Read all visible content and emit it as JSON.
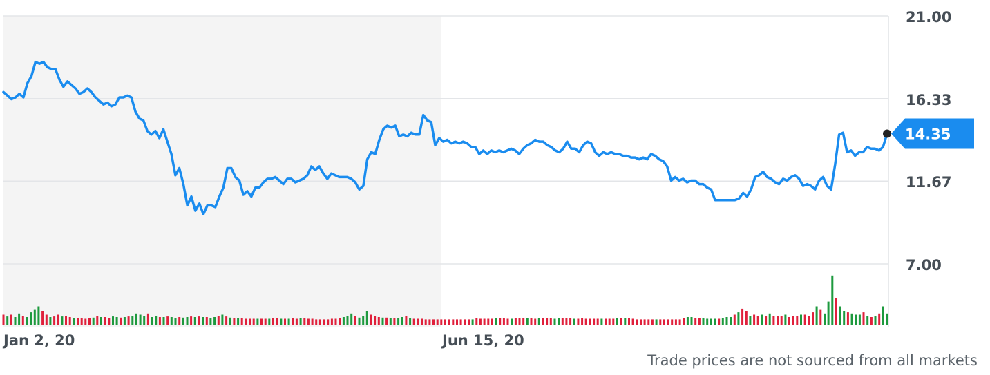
{
  "chart_data": {
    "type": "line",
    "y_ticks": [
      "21.00",
      "16.33",
      "11.67",
      "7.00"
    ],
    "ylim": [
      7.0,
      21.0
    ],
    "x_tick_labels": [
      "Jan 2, 20",
      "Jun 15, 20"
    ],
    "current_price_label": "14.35",
    "footnote": "Trade prices are not sourced from all markets",
    "colors": {
      "line": "#1a8cef",
      "grid": "#e3e5e8",
      "shade": "#f4f4f4",
      "vol_up": "#1d9a3e",
      "vol_down": "#e0203b",
      "marker": "#222222"
    },
    "series": [
      {
        "values": [
          16.7,
          16.5,
          16.3,
          16.4,
          16.6,
          16.4,
          17.2,
          17.6,
          18.4,
          18.3,
          18.4,
          18.1,
          18.0,
          18.0,
          17.4,
          17.0,
          17.3,
          17.1,
          16.9,
          16.6,
          16.7,
          16.9,
          16.7,
          16.4,
          16.2,
          16.0,
          16.1,
          15.9,
          16.0,
          16.4,
          16.4,
          16.5,
          16.4,
          15.6,
          15.2,
          15.1,
          14.5,
          14.3,
          14.5,
          14.1,
          14.6,
          13.9,
          13.2,
          12.0,
          12.4,
          11.5,
          10.3,
          10.8,
          10.0,
          10.4,
          9.8,
          10.3,
          10.3,
          10.2,
          10.8,
          11.3,
          12.4,
          12.4,
          11.9,
          11.7,
          10.9,
          11.1,
          10.8,
          11.3,
          11.3,
          11.6,
          11.8,
          11.8,
          11.9,
          11.7,
          11.5,
          11.8,
          11.8,
          11.6,
          11.7,
          11.8,
          12.0,
          12.5,
          12.3,
          12.5,
          12.1,
          11.8,
          12.1,
          12.0,
          11.9,
          11.9,
          11.9,
          11.8,
          11.6,
          11.2,
          11.4,
          12.9,
          13.3,
          13.2,
          14.0,
          14.6,
          14.8,
          14.7,
          14.8,
          14.2,
          14.3,
          14.2,
          14.4,
          14.3,
          14.3,
          15.4,
          15.1,
          15.0,
          13.7,
          14.1,
          13.9,
          14.0,
          13.8,
          13.9,
          13.8,
          13.9,
          13.8,
          13.6,
          13.6,
          13.2,
          13.4,
          13.2,
          13.4,
          13.3,
          13.4,
          13.3,
          13.4,
          13.5,
          13.4,
          13.2,
          13.5,
          13.7,
          13.8,
          14.0,
          13.9,
          13.9,
          13.7,
          13.6,
          13.4,
          13.3,
          13.5,
          13.9,
          13.5,
          13.5,
          13.3,
          13.7,
          13.9,
          13.8,
          13.3,
          13.1,
          13.3,
          13.2,
          13.3,
          13.2,
          13.2,
          13.1,
          13.1,
          13.0,
          13.0,
          12.9,
          13.0,
          12.9,
          13.2,
          13.1,
          12.9,
          12.8,
          12.5,
          11.7,
          11.9,
          11.7,
          11.8,
          11.6,
          11.7,
          11.7,
          11.5,
          11.5,
          11.3,
          11.2,
          10.6,
          10.6,
          10.6,
          10.6,
          10.6,
          10.6,
          10.7,
          11.0,
          10.8,
          11.2,
          11.9,
          12.0,
          12.2,
          11.9,
          11.8,
          11.6,
          11.5,
          11.8,
          11.7,
          11.9,
          12.0,
          11.8,
          11.4,
          11.5,
          11.4,
          11.2,
          11.7,
          11.9,
          11.4,
          11.2,
          12.6,
          14.3,
          14.4,
          13.3,
          13.4,
          13.1,
          13.3,
          13.3,
          13.6,
          13.5,
          13.5,
          13.4,
          13.6,
          14.35
        ]
      }
    ],
    "volume": [
      {
        "v": 18,
        "c": "down"
      },
      {
        "v": 15,
        "c": "up"
      },
      {
        "v": 18,
        "c": "down"
      },
      {
        "v": 14,
        "c": "up"
      },
      {
        "v": 20,
        "c": "up"
      },
      {
        "v": 16,
        "c": "down"
      },
      {
        "v": 14,
        "c": "up"
      },
      {
        "v": 22,
        "c": "up"
      },
      {
        "v": 26,
        "c": "up"
      },
      {
        "v": 32,
        "c": "up"
      },
      {
        "v": 24,
        "c": "down"
      },
      {
        "v": 18,
        "c": "down"
      },
      {
        "v": 14,
        "c": "up"
      },
      {
        "v": 15,
        "c": "down"
      },
      {
        "v": 18,
        "c": "down"
      },
      {
        "v": 15,
        "c": "up"
      },
      {
        "v": 16,
        "c": "down"
      },
      {
        "v": 14,
        "c": "down"
      },
      {
        "v": 12,
        "c": "up"
      },
      {
        "v": 12,
        "c": "down"
      },
      {
        "v": 12,
        "c": "down"
      },
      {
        "v": 11,
        "c": "down"
      },
      {
        "v": 12,
        "c": "down"
      },
      {
        "v": 13,
        "c": "up"
      },
      {
        "v": 16,
        "c": "down"
      },
      {
        "v": 14,
        "c": "up"
      },
      {
        "v": 14,
        "c": "down"
      },
      {
        "v": 12,
        "c": "down"
      },
      {
        "v": 15,
        "c": "up"
      },
      {
        "v": 14,
        "c": "up"
      },
      {
        "v": 13,
        "c": "down"
      },
      {
        "v": 14,
        "c": "up"
      },
      {
        "v": 15,
        "c": "down"
      },
      {
        "v": 16,
        "c": "up"
      },
      {
        "v": 20,
        "c": "up"
      },
      {
        "v": 18,
        "c": "up"
      },
      {
        "v": 16,
        "c": "up"
      },
      {
        "v": 20,
        "c": "down"
      },
      {
        "v": 14,
        "c": "up"
      },
      {
        "v": 16,
        "c": "up"
      },
      {
        "v": 14,
        "c": "down"
      },
      {
        "v": 14,
        "c": "up"
      },
      {
        "v": 15,
        "c": "down"
      },
      {
        "v": 14,
        "c": "up"
      },
      {
        "v": 12,
        "c": "up"
      },
      {
        "v": 14,
        "c": "down"
      },
      {
        "v": 13,
        "c": "up"
      },
      {
        "v": 14,
        "c": "up"
      },
      {
        "v": 15,
        "c": "down"
      },
      {
        "v": 14,
        "c": "up"
      },
      {
        "v": 15,
        "c": "down"
      },
      {
        "v": 14,
        "c": "up"
      },
      {
        "v": 14,
        "c": "down"
      },
      {
        "v": 12,
        "c": "up"
      },
      {
        "v": 14,
        "c": "up"
      },
      {
        "v": 16,
        "c": "down"
      },
      {
        "v": 18,
        "c": "up"
      },
      {
        "v": 15,
        "c": "down"
      },
      {
        "v": 13,
        "c": "up"
      },
      {
        "v": 12,
        "c": "down"
      },
      {
        "v": 12,
        "c": "up"
      },
      {
        "v": 12,
        "c": "down"
      },
      {
        "v": 11,
        "c": "down"
      },
      {
        "v": 11,
        "c": "down"
      },
      {
        "v": 11,
        "c": "down"
      },
      {
        "v": 11,
        "c": "up"
      },
      {
        "v": 11,
        "c": "down"
      },
      {
        "v": 11,
        "c": "down"
      },
      {
        "v": 11,
        "c": "up"
      },
      {
        "v": 12,
        "c": "down"
      },
      {
        "v": 12,
        "c": "down"
      },
      {
        "v": 11,
        "c": "up"
      },
      {
        "v": 11,
        "c": "down"
      },
      {
        "v": 11,
        "c": "up"
      },
      {
        "v": 12,
        "c": "down"
      },
      {
        "v": 11,
        "c": "down"
      },
      {
        "v": 12,
        "c": "up"
      },
      {
        "v": 12,
        "c": "down"
      },
      {
        "v": 11,
        "c": "down"
      },
      {
        "v": 11,
        "c": "down"
      },
      {
        "v": 10,
        "c": "down"
      },
      {
        "v": 10,
        "c": "down"
      },
      {
        "v": 10,
        "c": "down"
      },
      {
        "v": 10,
        "c": "down"
      },
      {
        "v": 11,
        "c": "down"
      },
      {
        "v": 11,
        "c": "down"
      },
      {
        "v": 12,
        "c": "down"
      },
      {
        "v": 14,
        "c": "up"
      },
      {
        "v": 16,
        "c": "up"
      },
      {
        "v": 20,
        "c": "up"
      },
      {
        "v": 16,
        "c": "down"
      },
      {
        "v": 13,
        "c": "up"
      },
      {
        "v": 16,
        "c": "up"
      },
      {
        "v": 24,
        "c": "up"
      },
      {
        "v": 18,
        "c": "down"
      },
      {
        "v": 16,
        "c": "down"
      },
      {
        "v": 14,
        "c": "down"
      },
      {
        "v": 13,
        "c": "up"
      },
      {
        "v": 13,
        "c": "down"
      },
      {
        "v": 12,
        "c": "up"
      },
      {
        "v": 12,
        "c": "down"
      },
      {
        "v": 12,
        "c": "up"
      },
      {
        "v": 14,
        "c": "up"
      },
      {
        "v": 16,
        "c": "down"
      },
      {
        "v": 12,
        "c": "up"
      },
      {
        "v": 11,
        "c": "down"
      },
      {
        "v": 11,
        "c": "down"
      },
      {
        "v": 11,
        "c": "down"
      },
      {
        "v": 10,
        "c": "down"
      },
      {
        "v": 10,
        "c": "down"
      },
      {
        "v": 10,
        "c": "down"
      },
      {
        "v": 10,
        "c": "down"
      },
      {
        "v": 10,
        "c": "down"
      },
      {
        "v": 10,
        "c": "down"
      },
      {
        "v": 10,
        "c": "down"
      },
      {
        "v": 10,
        "c": "down"
      },
      {
        "v": 10,
        "c": "down"
      },
      {
        "v": 10,
        "c": "down"
      },
      {
        "v": 10,
        "c": "down"
      },
      {
        "v": 10,
        "c": "down"
      },
      {
        "v": 10,
        "c": "up"
      },
      {
        "v": 12,
        "c": "down"
      },
      {
        "v": 11,
        "c": "down"
      },
      {
        "v": 11,
        "c": "down"
      },
      {
        "v": 11,
        "c": "down"
      },
      {
        "v": 11,
        "c": "down"
      },
      {
        "v": 12,
        "c": "up"
      },
      {
        "v": 12,
        "c": "down"
      },
      {
        "v": 12,
        "c": "down"
      },
      {
        "v": 11,
        "c": "down"
      },
      {
        "v": 11,
        "c": "up"
      },
      {
        "v": 12,
        "c": "down"
      },
      {
        "v": 12,
        "c": "down"
      },
      {
        "v": 12,
        "c": "down"
      },
      {
        "v": 12,
        "c": "up"
      },
      {
        "v": 12,
        "c": "down"
      },
      {
        "v": 11,
        "c": "down"
      },
      {
        "v": 12,
        "c": "up"
      },
      {
        "v": 12,
        "c": "down"
      },
      {
        "v": 12,
        "c": "down"
      },
      {
        "v": 12,
        "c": "down"
      },
      {
        "v": 11,
        "c": "up"
      },
      {
        "v": 12,
        "c": "up"
      },
      {
        "v": 12,
        "c": "down"
      },
      {
        "v": 12,
        "c": "down"
      },
      {
        "v": 12,
        "c": "down"
      },
      {
        "v": 11,
        "c": "up"
      },
      {
        "v": 11,
        "c": "down"
      },
      {
        "v": 12,
        "c": "down"
      },
      {
        "v": 11,
        "c": "down"
      },
      {
        "v": 11,
        "c": "down"
      },
      {
        "v": 11,
        "c": "down"
      },
      {
        "v": 11,
        "c": "down"
      },
      {
        "v": 11,
        "c": "up"
      },
      {
        "v": 11,
        "c": "down"
      },
      {
        "v": 11,
        "c": "down"
      },
      {
        "v": 11,
        "c": "down"
      },
      {
        "v": 12,
        "c": "up"
      },
      {
        "v": 12,
        "c": "down"
      },
      {
        "v": 12,
        "c": "up"
      },
      {
        "v": 12,
        "c": "down"
      },
      {
        "v": 11,
        "c": "down"
      },
      {
        "v": 10,
        "c": "down"
      },
      {
        "v": 10,
        "c": "down"
      },
      {
        "v": 10,
        "c": "down"
      },
      {
        "v": 10,
        "c": "down"
      },
      {
        "v": 10,
        "c": "down"
      },
      {
        "v": 10,
        "c": "up"
      },
      {
        "v": 10,
        "c": "down"
      },
      {
        "v": 10,
        "c": "down"
      },
      {
        "v": 10,
        "c": "down"
      },
      {
        "v": 10,
        "c": "down"
      },
      {
        "v": 10,
        "c": "down"
      },
      {
        "v": 10,
        "c": "down"
      },
      {
        "v": 12,
        "c": "down"
      },
      {
        "v": 14,
        "c": "up"
      },
      {
        "v": 14,
        "c": "up"
      },
      {
        "v": 12,
        "c": "down"
      },
      {
        "v": 12,
        "c": "down"
      },
      {
        "v": 12,
        "c": "up"
      },
      {
        "v": 11,
        "c": "up"
      },
      {
        "v": 11,
        "c": "up"
      },
      {
        "v": 11,
        "c": "up"
      },
      {
        "v": 11,
        "c": "down"
      },
      {
        "v": 12,
        "c": "up"
      },
      {
        "v": 14,
        "c": "up"
      },
      {
        "v": 14,
        "c": "up"
      },
      {
        "v": 18,
        "c": "down"
      },
      {
        "v": 22,
        "c": "up"
      },
      {
        "v": 28,
        "c": "down"
      },
      {
        "v": 24,
        "c": "down"
      },
      {
        "v": 16,
        "c": "up"
      },
      {
        "v": 18,
        "c": "down"
      },
      {
        "v": 16,
        "c": "down"
      },
      {
        "v": 18,
        "c": "up"
      },
      {
        "v": 16,
        "c": "down"
      },
      {
        "v": 20,
        "c": "up"
      },
      {
        "v": 16,
        "c": "down"
      },
      {
        "v": 16,
        "c": "down"
      },
      {
        "v": 16,
        "c": "down"
      },
      {
        "v": 18,
        "c": "up"
      },
      {
        "v": 14,
        "c": "down"
      },
      {
        "v": 16,
        "c": "down"
      },
      {
        "v": 16,
        "c": "down"
      },
      {
        "v": 18,
        "c": "up"
      },
      {
        "v": 18,
        "c": "down"
      },
      {
        "v": 16,
        "c": "down"
      },
      {
        "v": 22,
        "c": "down"
      },
      {
        "v": 32,
        "c": "up"
      },
      {
        "v": 26,
        "c": "down"
      },
      {
        "v": 20,
        "c": "up"
      },
      {
        "v": 40,
        "c": "up"
      },
      {
        "v": 84,
        "c": "up"
      },
      {
        "v": 46,
        "c": "down"
      },
      {
        "v": 32,
        "c": "up"
      },
      {
        "v": 24,
        "c": "up"
      },
      {
        "v": 22,
        "c": "down"
      },
      {
        "v": 20,
        "c": "up"
      },
      {
        "v": 18,
        "c": "up"
      },
      {
        "v": 18,
        "c": "up"
      },
      {
        "v": 22,
        "c": "down"
      },
      {
        "v": 16,
        "c": "up"
      },
      {
        "v": 14,
        "c": "down"
      },
      {
        "v": 16,
        "c": "up"
      },
      {
        "v": 20,
        "c": "down"
      },
      {
        "v": 32,
        "c": "up"
      },
      {
        "v": 20,
        "c": "up"
      }
    ]
  }
}
